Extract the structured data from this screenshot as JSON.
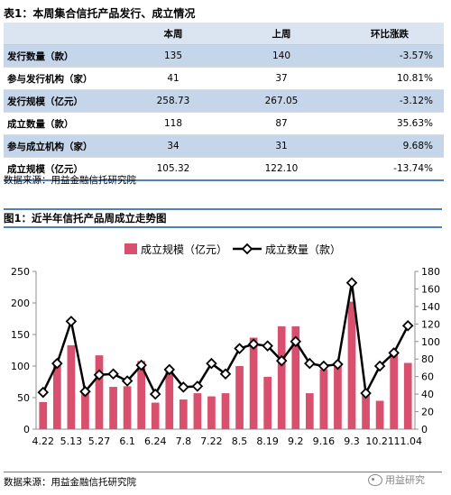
{
  "table": {
    "title": "表1：本周集合信托产品发行、成立情况",
    "headers": [
      "",
      "本周",
      "上周",
      "环比涨跌"
    ],
    "rows": [
      [
        "发行数量（款）",
        "135",
        "140",
        "-3.57%"
      ],
      [
        "参与发行机构（家）",
        "41",
        "37",
        "10.81%"
      ],
      [
        "发行规模（亿元）",
        "258.73",
        "267.05",
        "-3.12%"
      ],
      [
        "成立数量（款）",
        "118",
        "87",
        "35.63%"
      ],
      [
        "参与成立机构（家）",
        "34",
        "31",
        "9.68%"
      ],
      [
        "成立规模（亿元）",
        "105.32",
        "122.10",
        "-13.74%"
      ]
    ],
    "source": "数据来源：用益金融信托研究院"
  },
  "figure": {
    "title": "图1：近半年信托产品周成立走势图",
    "source": "数据来源：用益金融信托研究院",
    "watermark": "用益研究",
    "watermark_icon": "wechat-icon"
  },
  "chart_data": {
    "type": "bar",
    "title": "",
    "xlabel": "",
    "ylabel": "",
    "ylim": [
      0,
      250
    ],
    "y2lim": [
      0,
      180
    ],
    "yticks": [
      0,
      50,
      100,
      150,
      200,
      250
    ],
    "y2ticks": [
      0,
      20,
      40,
      60,
      80,
      100,
      120,
      140,
      160,
      180
    ],
    "x_tick_labels": [
      "4.22",
      "5.13",
      "5.27",
      "6.1",
      "6.24",
      "7.8",
      "7.22",
      "8.5",
      "8.19",
      "9.2",
      "9.16",
      "9.3",
      "10.21",
      "11.04"
    ],
    "x_tick_every": 2,
    "legend_position": "top",
    "grid": false,
    "bar_color": "#d9506e",
    "line_color": "#000000",
    "series": [
      {
        "name": "成立规模（亿元）",
        "type": "bar",
        "axis": "left",
        "values": [
          43,
          108,
          133,
          62,
          117,
          67,
          68,
          108,
          42,
          92,
          47,
          57,
          52,
          57,
          100,
          145,
          83,
          163,
          163,
          57,
          95,
          103,
          202,
          55,
          45,
          122,
          105
        ]
      },
      {
        "name": "成立数量（款）",
        "type": "line",
        "axis": "right",
        "values": [
          42,
          75,
          123,
          43,
          62,
          63,
          55,
          73,
          40,
          68,
          48,
          49,
          75,
          63,
          92,
          97,
          95,
          78,
          100,
          75,
          72,
          74,
          167,
          41,
          72,
          87,
          118
        ]
      }
    ]
  }
}
